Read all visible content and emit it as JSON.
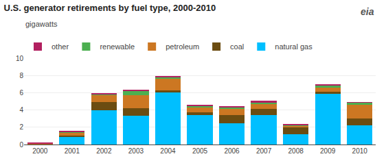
{
  "chart_data": {
    "type": "bar",
    "title": "U.S. generator retirements by fuel type, 2000-2010",
    "subtitle": "gigawatts",
    "annotations": [
      "eia"
    ],
    "categories": [
      "2000",
      "2001",
      "2002",
      "2003",
      "2004",
      "2005",
      "2006",
      "2007",
      "2008",
      "2009",
      "2010"
    ],
    "stacked": true,
    "series": [
      {
        "name": "natural gas",
        "color": "#00BFFF",
        "values": [
          0.05,
          0.9,
          4.0,
          3.3,
          6.0,
          3.4,
          2.5,
          3.4,
          1.2,
          5.9,
          2.2
        ]
      },
      {
        "name": "coal",
        "color": "#6B4C11",
        "values": [
          0.0,
          0.15,
          0.9,
          0.9,
          0.3,
          0.35,
          0.9,
          0.7,
          0.75,
          0.25,
          0.85
        ]
      },
      {
        "name": "petroleum",
        "color": "#CC7722",
        "values": [
          0.05,
          0.3,
          0.85,
          1.5,
          1.35,
          0.6,
          0.8,
          0.65,
          0.25,
          0.45,
          1.55
        ]
      },
      {
        "name": "renewable",
        "color": "#4CAF50",
        "values": [
          0.0,
          0.1,
          0.1,
          0.5,
          0.2,
          0.15,
          0.15,
          0.15,
          0.05,
          0.25,
          0.25
        ]
      },
      {
        "name": "other",
        "color": "#B22060",
        "values": [
          0.1,
          0.1,
          0.05,
          0.1,
          0.1,
          0.1,
          0.07,
          0.15,
          0.1,
          0.1,
          0.07
        ]
      }
    ],
    "ylim": [
      0,
      10
    ],
    "yticks": [
      0,
      2,
      4,
      6,
      8,
      10
    ],
    "grid": true,
    "legend": "top"
  }
}
